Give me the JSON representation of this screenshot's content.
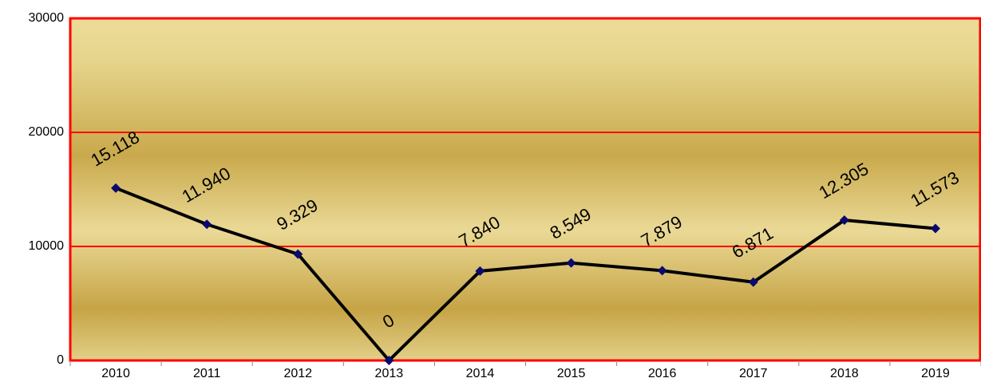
{
  "chart_data": {
    "type": "line",
    "categories": [
      "2010",
      "2011",
      "2012",
      "2013",
      "2014",
      "2015",
      "2016",
      "2017",
      "2018",
      "2019"
    ],
    "series": [
      {
        "color": "#000000",
        "marker_color": "#0a0a6e",
        "values": [
          15118,
          11940,
          9329,
          0,
          7840,
          8549,
          7879,
          6871,
          12305,
          11573
        ],
        "value_labels": [
          "15.118",
          "11.940",
          "9.329",
          "0",
          "7.840",
          "8.549",
          "7.879",
          "6.871",
          "12.305",
          "11.573"
        ]
      }
    ],
    "ylim": [
      0,
      30000
    ],
    "yticks": [
      0,
      10000,
      20000,
      30000
    ],
    "grid": true,
    "grid_color": "#ff0000"
  }
}
